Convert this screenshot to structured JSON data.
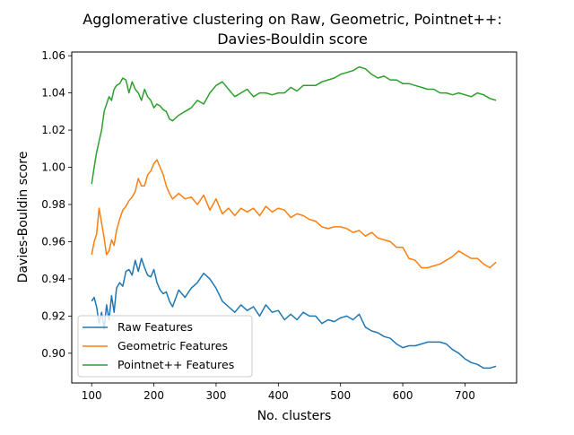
{
  "chart_data": {
    "type": "line",
    "title": [
      "Agglomerative clustering on Raw, Geometric, Pointnet++:",
      "Davies-Bouldin score"
    ],
    "xlabel": "No. clusters",
    "ylabel": "Davies-Bouldin score",
    "xlim": [
      68,
      783
    ],
    "ylim": [
      0.884,
      1.062
    ],
    "xticks": [
      100,
      200,
      300,
      400,
      500,
      600,
      700
    ],
    "yticks": [
      0.9,
      0.92,
      0.94,
      0.96,
      0.98,
      1.0,
      1.02,
      1.04,
      1.06
    ],
    "ytick_labels": [
      "0.90",
      "0.92",
      "0.94",
      "0.96",
      "0.98",
      "1.00",
      "1.02",
      "1.04",
      "1.06"
    ],
    "legend_position": "lower-left",
    "grid": false,
    "series": [
      {
        "name": "Raw Features",
        "color": "#1f77b4",
        "x": [
          100,
          104,
          108,
          112,
          116,
          120,
          124,
          128,
          132,
          136,
          140,
          145,
          150,
          155,
          160,
          165,
          170,
          175,
          180,
          185,
          190,
          195,
          200,
          205,
          210,
          215,
          220,
          225,
          230,
          240,
          250,
          260,
          270,
          280,
          290,
          300,
          310,
          320,
          330,
          340,
          350,
          360,
          370,
          380,
          390,
          400,
          410,
          420,
          430,
          440,
          450,
          460,
          470,
          480,
          490,
          500,
          510,
          520,
          530,
          540,
          550,
          560,
          570,
          580,
          590,
          600,
          610,
          620,
          630,
          640,
          650,
          660,
          670,
          680,
          690,
          700,
          710,
          720,
          730,
          740,
          750
        ],
        "values": [
          0.928,
          0.93,
          0.925,
          0.916,
          0.922,
          0.913,
          0.926,
          0.918,
          0.931,
          0.922,
          0.935,
          0.938,
          0.936,
          0.944,
          0.945,
          0.942,
          0.95,
          0.944,
          0.951,
          0.946,
          0.942,
          0.941,
          0.945,
          0.938,
          0.934,
          0.932,
          0.933,
          0.928,
          0.925,
          0.934,
          0.93,
          0.935,
          0.938,
          0.943,
          0.94,
          0.935,
          0.928,
          0.925,
          0.922,
          0.926,
          0.923,
          0.925,
          0.92,
          0.926,
          0.922,
          0.923,
          0.918,
          0.921,
          0.918,
          0.922,
          0.92,
          0.92,
          0.916,
          0.918,
          0.917,
          0.919,
          0.92,
          0.918,
          0.921,
          0.914,
          0.912,
          0.911,
          0.909,
          0.908,
          0.905,
          0.903,
          0.904,
          0.904,
          0.905,
          0.906,
          0.906,
          0.906,
          0.905,
          0.902,
          0.9,
          0.897,
          0.895,
          0.894,
          0.892,
          0.892,
          0.893
        ]
      },
      {
        "name": "Geometric Features",
        "color": "#ff7f0e",
        "x": [
          100,
          104,
          108,
          112,
          116,
          120,
          124,
          128,
          132,
          136,
          140,
          145,
          150,
          155,
          160,
          165,
          170,
          175,
          180,
          185,
          190,
          195,
          200,
          205,
          210,
          215,
          220,
          225,
          230,
          240,
          250,
          260,
          270,
          280,
          290,
          300,
          310,
          320,
          330,
          340,
          350,
          360,
          370,
          380,
          390,
          400,
          410,
          420,
          430,
          440,
          450,
          460,
          470,
          480,
          490,
          500,
          510,
          520,
          530,
          540,
          550,
          560,
          570,
          580,
          590,
          600,
          610,
          620,
          630,
          640,
          650,
          660,
          670,
          680,
          690,
          700,
          710,
          720,
          730,
          740,
          750
        ],
        "values": [
          0.953,
          0.96,
          0.964,
          0.978,
          0.97,
          0.962,
          0.953,
          0.955,
          0.961,
          0.958,
          0.966,
          0.972,
          0.977,
          0.979,
          0.982,
          0.984,
          0.987,
          0.994,
          0.99,
          0.99,
          0.996,
          0.998,
          1.002,
          1.004,
          1.0,
          0.996,
          0.99,
          0.986,
          0.983,
          0.986,
          0.983,
          0.984,
          0.98,
          0.985,
          0.977,
          0.983,
          0.975,
          0.978,
          0.974,
          0.978,
          0.976,
          0.978,
          0.974,
          0.979,
          0.976,
          0.978,
          0.977,
          0.973,
          0.975,
          0.974,
          0.972,
          0.971,
          0.968,
          0.967,
          0.968,
          0.968,
          0.967,
          0.965,
          0.966,
          0.963,
          0.965,
          0.962,
          0.961,
          0.96,
          0.957,
          0.957,
          0.951,
          0.95,
          0.946,
          0.946,
          0.947,
          0.948,
          0.95,
          0.952,
          0.955,
          0.953,
          0.951,
          0.951,
          0.948,
          0.946,
          0.949
        ]
      },
      {
        "name": "Pointnet++ Features",
        "color": "#2ca02c",
        "x": [
          100,
          104,
          108,
          112,
          116,
          120,
          124,
          128,
          132,
          136,
          140,
          145,
          150,
          155,
          160,
          165,
          170,
          175,
          180,
          185,
          190,
          195,
          200,
          205,
          210,
          215,
          220,
          225,
          230,
          240,
          250,
          260,
          270,
          280,
          290,
          300,
          310,
          320,
          330,
          340,
          350,
          360,
          370,
          380,
          390,
          400,
          410,
          420,
          430,
          440,
          450,
          460,
          470,
          480,
          490,
          500,
          510,
          520,
          530,
          540,
          550,
          560,
          570,
          580,
          590,
          600,
          610,
          620,
          630,
          640,
          650,
          660,
          670,
          680,
          690,
          700,
          710,
          720,
          730,
          740,
          750
        ],
        "values": [
          0.991,
          1.0,
          1.008,
          1.014,
          1.02,
          1.03,
          1.034,
          1.038,
          1.036,
          1.042,
          1.044,
          1.045,
          1.048,
          1.047,
          1.04,
          1.046,
          1.042,
          1.04,
          1.036,
          1.042,
          1.038,
          1.036,
          1.032,
          1.034,
          1.033,
          1.031,
          1.03,
          1.026,
          1.025,
          1.028,
          1.03,
          1.032,
          1.036,
          1.034,
          1.04,
          1.044,
          1.046,
          1.042,
          1.038,
          1.04,
          1.042,
          1.038,
          1.04,
          1.04,
          1.039,
          1.04,
          1.04,
          1.043,
          1.041,
          1.044,
          1.044,
          1.044,
          1.046,
          1.047,
          1.048,
          1.05,
          1.051,
          1.052,
          1.054,
          1.053,
          1.05,
          1.048,
          1.049,
          1.047,
          1.047,
          1.045,
          1.045,
          1.044,
          1.043,
          1.042,
          1.042,
          1.04,
          1.04,
          1.039,
          1.04,
          1.039,
          1.038,
          1.04,
          1.039,
          1.037,
          1.036
        ]
      }
    ]
  }
}
